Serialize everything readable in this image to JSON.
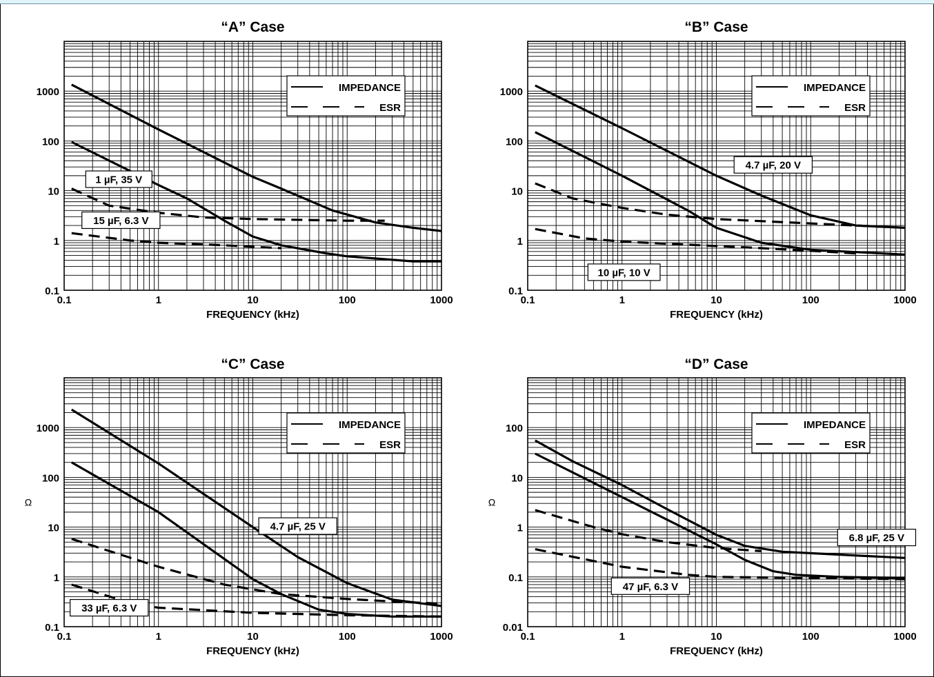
{
  "colors": {
    "line": "#000000",
    "grid": "#000000",
    "background": "#ffffff",
    "accent_bar": "#e0f5fa"
  },
  "chart_data": [
    {
      "type": "line",
      "title": "“A” Case",
      "xlabel": "FREQUENCY (kHz)",
      "ylabel": "",
      "xscale": "log",
      "yscale": "log",
      "xlim": [
        0.1,
        1000
      ],
      "ylim": [
        0.1,
        10000
      ],
      "xticks": [
        "0.1",
        "1",
        "10",
        "100",
        "1000"
      ],
      "yticks": [
        {
          "v": 0.1,
          "label": "0.1"
        },
        {
          "v": 1,
          "label": "1"
        },
        {
          "v": 10,
          "label": "10"
        },
        {
          "v": 100,
          "label": "100"
        },
        {
          "v": 1000,
          "label": "1000"
        }
      ],
      "legend": {
        "position": "top-right",
        "entries": [
          {
            "label": "IMPEDANCE",
            "style": "solid"
          },
          {
            "label": "ESR",
            "style": "dashed"
          }
        ]
      },
      "series": [
        {
          "group": "1 µF, 35 V",
          "kind": "impedance",
          "style": "solid",
          "x": [
            0.12,
            1,
            10,
            20,
            70,
            200,
            500,
            1000
          ],
          "y": [
            1350,
            170,
            19,
            11,
            4,
            2.3,
            1.8,
            1.55
          ]
        },
        {
          "group": "15 µF, 6.3 V",
          "kind": "impedance",
          "style": "solid",
          "x": [
            0.12,
            1,
            2,
            5,
            10,
            20,
            60,
            100,
            500,
            1000
          ],
          "y": [
            95,
            13,
            7,
            2.5,
            1.2,
            0.8,
            0.55,
            0.48,
            0.38,
            0.38
          ]
        },
        {
          "group": "1 µF, 35 V",
          "kind": "esr",
          "style": "dashed",
          "x": [
            0.12,
            0.3,
            1,
            3,
            10,
            100,
            250
          ],
          "y": [
            11,
            5,
            3.6,
            2.9,
            2.7,
            2.5,
            2.5
          ]
        },
        {
          "group": "15 µF, 6.3 V",
          "kind": "esr",
          "style": "dashed",
          "x": [
            0.12,
            0.5,
            1,
            5,
            20
          ],
          "y": [
            1.4,
            1.0,
            0.9,
            0.8,
            0.7
          ]
        }
      ],
      "annotations": [
        {
          "text": "1 µF, 35 V",
          "x": 0.38,
          "y": 17
        },
        {
          "text": "15 µF, 6.3 V",
          "x": 0.4,
          "y": 2.55
        }
      ]
    },
    {
      "type": "line",
      "title": "“B” Case",
      "xlabel": "FREQUENCY (kHz)",
      "ylabel": "",
      "xscale": "log",
      "yscale": "log",
      "xlim": [
        0.1,
        1000
      ],
      "ylim": [
        0.1,
        10000
      ],
      "xticks": [
        "0.1",
        "1",
        "10",
        "100",
        "1000"
      ],
      "yticks": [
        {
          "v": 0.1,
          "label": "0.1"
        },
        {
          "v": 1,
          "label": "1"
        },
        {
          "v": 10,
          "label": "10"
        },
        {
          "v": 100,
          "label": "100"
        },
        {
          "v": 1000,
          "label": "1000"
        }
      ],
      "legend": {
        "position": "top-right",
        "entries": [
          {
            "label": "IMPEDANCE",
            "style": "solid"
          },
          {
            "label": "ESR",
            "style": "dashed"
          }
        ]
      },
      "series": [
        {
          "group": "4.7 µF, 20 V",
          "kind": "impedance",
          "style": "solid",
          "x": [
            0.12,
            1,
            10,
            30,
            100,
            300,
            1000
          ],
          "y": [
            1300,
            180,
            20,
            8,
            3.2,
            2.0,
            1.8
          ]
        },
        {
          "group": "10 µF, 10 V",
          "kind": "impedance",
          "style": "solid",
          "x": [
            0.12,
            1,
            5,
            10,
            30,
            100,
            1000
          ],
          "y": [
            150,
            20,
            4,
            1.8,
            0.9,
            0.65,
            0.52
          ]
        },
        {
          "group": "4.7 µF, 20 V",
          "kind": "esr",
          "style": "dashed",
          "x": [
            0.12,
            0.3,
            1,
            3,
            10,
            100,
            1000
          ],
          "y": [
            14,
            7,
            4.5,
            3.3,
            2.7,
            2.2,
            1.8
          ]
        },
        {
          "group": "10 µF, 10 V",
          "kind": "esr",
          "style": "dashed",
          "x": [
            0.12,
            0.4,
            1,
            5,
            20,
            100,
            300
          ],
          "y": [
            1.7,
            1.1,
            0.95,
            0.82,
            0.73,
            0.62,
            0.55
          ]
        }
      ],
      "annotations": [
        {
          "text": "4.7 µF, 20 V",
          "x": 40,
          "y": 33
        },
        {
          "text": "10 µF, 10 V",
          "x": 1.05,
          "y": 0.23
        }
      ]
    },
    {
      "type": "line",
      "title": "“C” Case",
      "xlabel": "FREQUENCY (kHz)",
      "ylabel": "Ω",
      "xscale": "log",
      "yscale": "log",
      "xlim": [
        0.1,
        1000
      ],
      "ylim": [
        0.1,
        10000
      ],
      "xticks": [
        "0.1",
        "1",
        "10",
        "100",
        "1000"
      ],
      "yticks": [
        {
          "v": 0.1,
          "label": "0.1"
        },
        {
          "v": 1,
          "label": "1"
        },
        {
          "v": 10,
          "label": "10"
        },
        {
          "v": 100,
          "label": "100"
        },
        {
          "v": 1000,
          "label": "1000"
        }
      ],
      "legend": {
        "position": "top-right",
        "entries": [
          {
            "label": "IMPEDANCE",
            "style": "solid"
          },
          {
            "label": "ESR",
            "style": "dashed"
          }
        ]
      },
      "series": [
        {
          "group": "4.7 µF, 25 V",
          "kind": "impedance",
          "style": "solid",
          "x": [
            0.12,
            1,
            10,
            30,
            100,
            300,
            1000
          ],
          "y": [
            2300,
            190,
            10,
            2.5,
            0.75,
            0.35,
            0.26
          ]
        },
        {
          "group": "33 µF, 6.3 V",
          "kind": "impedance",
          "style": "solid",
          "x": [
            0.12,
            1,
            10,
            20,
            50,
            100,
            300,
            1000
          ],
          "y": [
            200,
            20,
            0.9,
            0.45,
            0.22,
            0.18,
            0.16,
            0.16
          ]
        },
        {
          "group": "4.7 µF, 25 V",
          "kind": "esr",
          "style": "dashed",
          "x": [
            0.12,
            1,
            5,
            20,
            100,
            300,
            1000
          ],
          "y": [
            5.8,
            1.6,
            0.7,
            0.45,
            0.36,
            0.32,
            0.29
          ]
        },
        {
          "group": "33 µF, 6.3 V",
          "kind": "esr",
          "style": "dashed",
          "x": [
            0.12,
            0.5,
            1,
            10,
            100,
            1000
          ],
          "y": [
            0.7,
            0.3,
            0.24,
            0.19,
            0.17,
            0.16
          ]
        }
      ],
      "annotations": [
        {
          "text": "4.7 µF, 25 V",
          "x": 30,
          "y": 10.5
        },
        {
          "text": "33 µF, 6.3 V",
          "x": 0.3,
          "y": 0.24
        }
      ]
    },
    {
      "type": "line",
      "title": "“D” Case",
      "xlabel": "FREQUENCY (kHz)",
      "ylabel": "Ω",
      "xscale": "log",
      "yscale": "log",
      "xlim": [
        0.1,
        1000
      ],
      "ylim": [
        0.01,
        1000
      ],
      "xticks": [
        "0.1",
        "1",
        "10",
        "100",
        "1000"
      ],
      "yticks": [
        {
          "v": 0.01,
          "label": "0.01"
        },
        {
          "v": 0.1,
          "label": "0.1"
        },
        {
          "v": 1,
          "label": "1"
        },
        {
          "v": 10,
          "label": "10"
        },
        {
          "v": 100,
          "label": "100"
        }
      ],
      "legend": {
        "position": "top-right",
        "entries": [
          {
            "label": "IMPEDANCE",
            "style": "solid"
          },
          {
            "label": "ESR",
            "style": "dashed"
          }
        ]
      },
      "series": [
        {
          "group": "6.8 µF, 25 V",
          "kind": "impedance",
          "style": "solid",
          "x": [
            0.12,
            0.3,
            1,
            3,
            10,
            20,
            50,
            200,
            1000
          ],
          "y": [
            55,
            21,
            7,
            2.3,
            0.7,
            0.42,
            0.32,
            0.28,
            0.24
          ]
        },
        {
          "group": "47 µF, 6.3 V",
          "kind": "impedance",
          "style": "solid",
          "x": [
            0.12,
            1,
            10,
            20,
            40,
            70,
            200,
            1000
          ],
          "y": [
            30,
            4,
            0.45,
            0.22,
            0.13,
            0.11,
            0.1,
            0.095
          ]
        },
        {
          "group": "6.8 µF, 25 V",
          "kind": "esr",
          "style": "dashed",
          "x": [
            0.12,
            0.5,
            1,
            3,
            10,
            30
          ],
          "y": [
            2.2,
            1.0,
            0.72,
            0.5,
            0.38,
            0.33
          ]
        },
        {
          "group": "47 µF, 6.3 V",
          "kind": "esr",
          "style": "dashed",
          "x": [
            0.12,
            1,
            5,
            10,
            100,
            1000
          ],
          "y": [
            0.36,
            0.16,
            0.11,
            0.1,
            0.095,
            0.09
          ]
        }
      ],
      "annotations": [
        {
          "text": "6.8 µF, 25 V",
          "x": 500,
          "y": 0.62
        },
        {
          "text": "47 µF, 6.3 V",
          "x": 2.0,
          "y": 0.065
        }
      ]
    }
  ]
}
